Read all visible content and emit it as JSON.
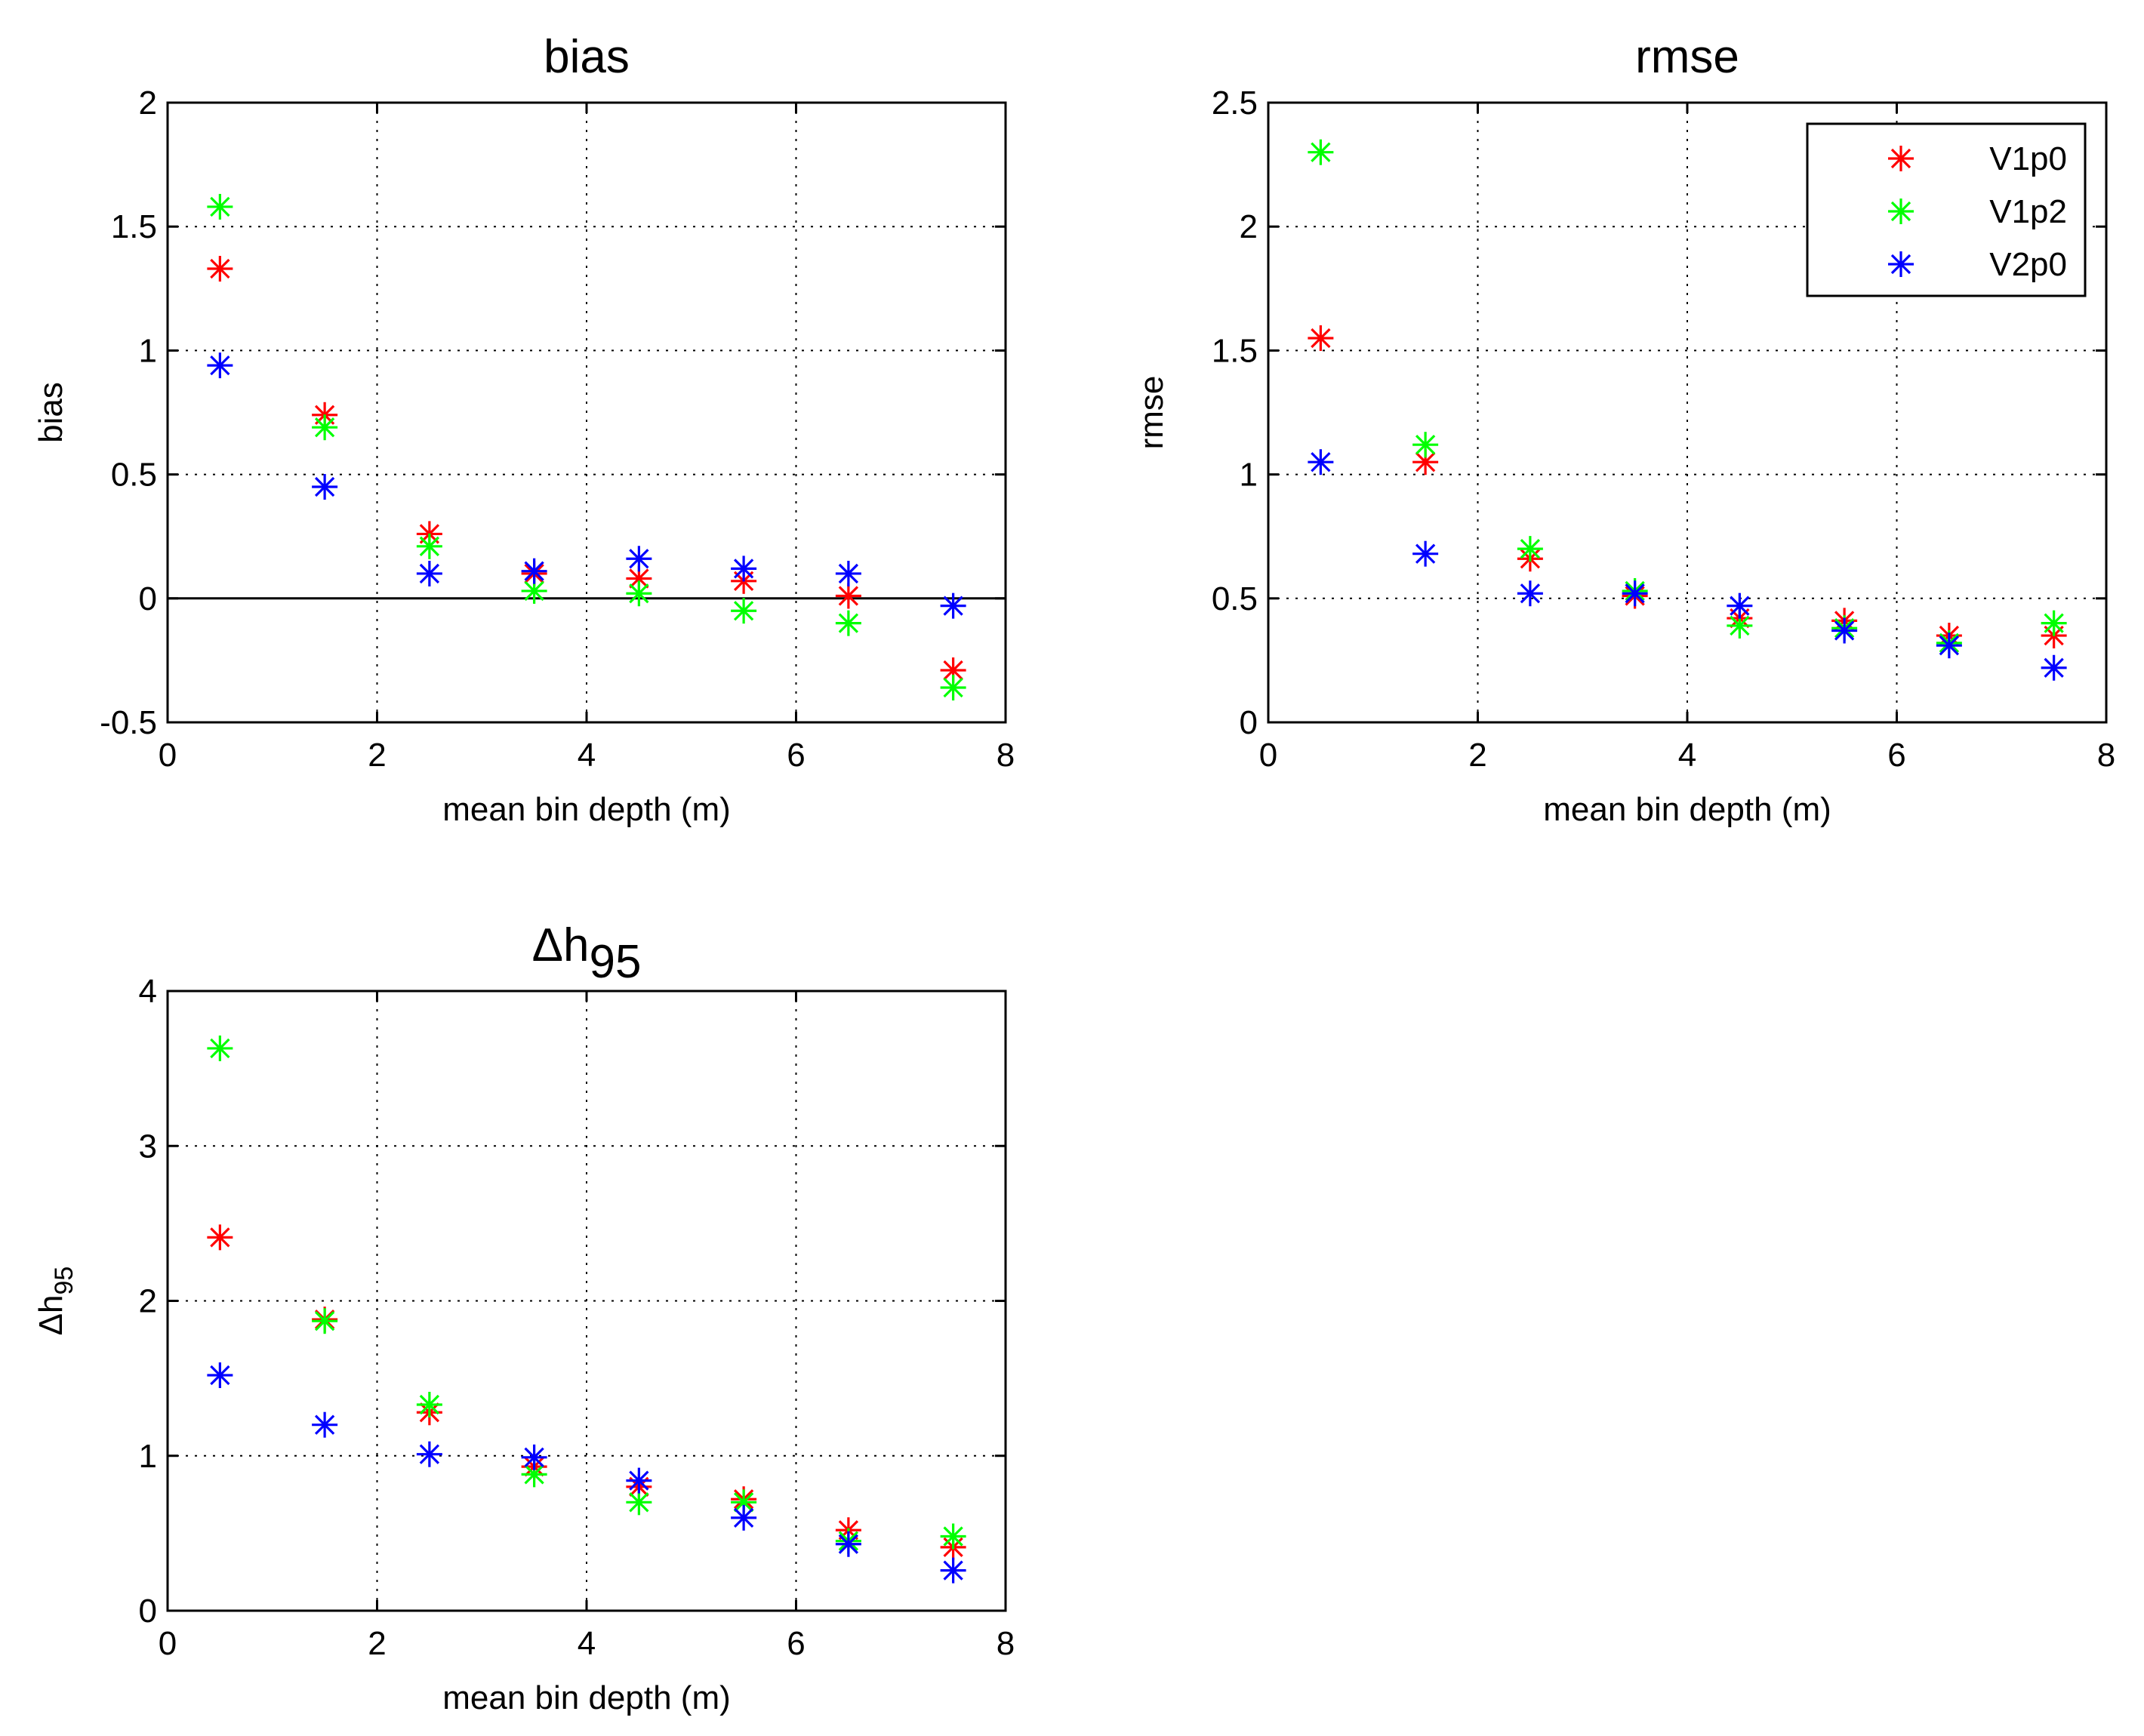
{
  "chart_data": [
    {
      "type": "scatter",
      "id": "bias",
      "title": "bias",
      "xlabel": "mean bin depth (m)",
      "ylabel": "bias",
      "xlim": [
        0,
        8
      ],
      "ylim": [
        -0.5,
        2
      ],
      "xticks": [
        0,
        2,
        4,
        6,
        8
      ],
      "xtick_labels": [
        "0",
        "2",
        "4",
        "6",
        "8"
      ],
      "yticks": [
        -0.5,
        0,
        0.5,
        1,
        1.5,
        2
      ],
      "ytick_labels": [
        "-0.5",
        "0",
        "0.5",
        "1",
        "1.5",
        "2"
      ],
      "grid": true,
      "zero_line": true,
      "x": [
        0.5,
        1.5,
        2.5,
        3.5,
        4.5,
        5.5,
        6.5,
        7.5
      ],
      "series": [
        {
          "name": "V1p0",
          "color": "#ff0000",
          "values": [
            1.33,
            0.74,
            0.26,
            0.1,
            0.08,
            0.07,
            0.01,
            -0.29
          ]
        },
        {
          "name": "V1p2",
          "color": "#00ff00",
          "values": [
            1.58,
            0.69,
            0.21,
            0.03,
            0.02,
            -0.05,
            -0.1,
            -0.36
          ]
        },
        {
          "name": "V2p0",
          "color": "#0000ff",
          "values": [
            0.94,
            0.45,
            0.1,
            0.11,
            0.16,
            0.12,
            0.1,
            -0.03
          ]
        }
      ]
    },
    {
      "type": "scatter",
      "id": "rmse",
      "title": "rmse",
      "xlabel": "mean bin depth (m)",
      "ylabel": "rmse",
      "xlim": [
        0,
        8
      ],
      "ylim": [
        0,
        2.5
      ],
      "xticks": [
        0,
        2,
        4,
        6,
        8
      ],
      "xtick_labels": [
        "0",
        "2",
        "4",
        "6",
        "8"
      ],
      "yticks": [
        0,
        0.5,
        1,
        1.5,
        2,
        2.5
      ],
      "ytick_labels": [
        "0",
        "0.5",
        "1",
        "1.5",
        "2",
        "2.5"
      ],
      "grid": true,
      "legend": "top-right",
      "x": [
        0.5,
        1.5,
        2.5,
        3.5,
        4.5,
        5.5,
        6.5,
        7.5
      ],
      "series": [
        {
          "name": "V1p0",
          "color": "#ff0000",
          "values": [
            1.55,
            1.05,
            0.66,
            0.51,
            0.42,
            0.41,
            0.35,
            0.35
          ]
        },
        {
          "name": "V1p2",
          "color": "#00ff00",
          "values": [
            2.3,
            1.12,
            0.7,
            0.53,
            0.39,
            0.38,
            0.32,
            0.4
          ]
        },
        {
          "name": "V2p0",
          "color": "#0000ff",
          "values": [
            1.05,
            0.68,
            0.52,
            0.52,
            0.47,
            0.37,
            0.31,
            0.22
          ]
        }
      ]
    },
    {
      "type": "scatter",
      "id": "dh95",
      "title": "Δh",
      "title_sub": "95",
      "xlabel": "mean bin depth (m)",
      "ylabel": "Δh",
      "ylabel_sub": "95",
      "xlim": [
        0,
        8
      ],
      "ylim": [
        0,
        4
      ],
      "xticks": [
        0,
        2,
        4,
        6,
        8
      ],
      "xtick_labels": [
        "0",
        "2",
        "4",
        "6",
        "8"
      ],
      "yticks": [
        0,
        1,
        2,
        3,
        4
      ],
      "ytick_labels": [
        "0",
        "1",
        "2",
        "3",
        "4"
      ],
      "grid": true,
      "x": [
        0.5,
        1.5,
        2.5,
        3.5,
        4.5,
        5.5,
        6.5,
        7.5
      ],
      "series": [
        {
          "name": "V1p0",
          "color": "#ff0000",
          "values": [
            2.41,
            1.88,
            1.28,
            0.93,
            0.8,
            0.72,
            0.52,
            0.41
          ]
        },
        {
          "name": "V1p2",
          "color": "#00ff00",
          "values": [
            3.63,
            1.87,
            1.33,
            0.88,
            0.7,
            0.7,
            0.45,
            0.48
          ]
        },
        {
          "name": "V2p0",
          "color": "#0000ff",
          "values": [
            1.52,
            1.2,
            1.01,
            0.99,
            0.84,
            0.6,
            0.43,
            0.26
          ]
        }
      ]
    }
  ]
}
